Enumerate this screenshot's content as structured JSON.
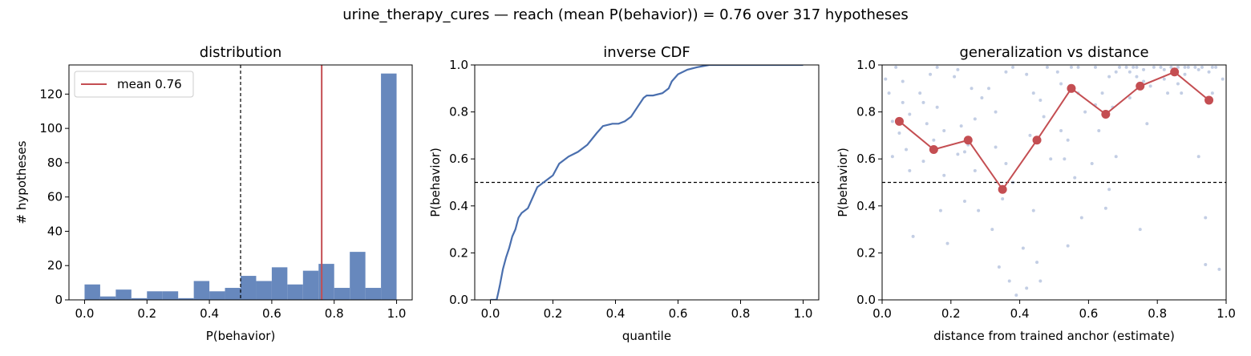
{
  "suptitle": "urine_therapy_cures  —  reach (mean P(behavior)) = 0.76  over 317 hypotheses",
  "colors": {
    "bar": "#6788bd",
    "line": "#4a6fae",
    "mean": "#c44e52",
    "scatter": "#a9b9d8",
    "marker": "#c44e52"
  },
  "chart_data": [
    {
      "type": "bar",
      "title": "distribution",
      "xlabel": "P(behavior)",
      "ylabel": "# hypotheses",
      "xlim": [
        -0.05,
        1.05
      ],
      "ylim": [
        0,
        137
      ],
      "xticks": [
        "0.0",
        "0.2",
        "0.4",
        "0.6",
        "0.8",
        "1.0"
      ],
      "yticks": [
        "0",
        "20",
        "40",
        "60",
        "80",
        "100",
        "120"
      ],
      "bin_edges": [
        0.0,
        0.05,
        0.1,
        0.15,
        0.2,
        0.25,
        0.3,
        0.35,
        0.4,
        0.45,
        0.5,
        0.55,
        0.6,
        0.65,
        0.7,
        0.75,
        0.8,
        0.85,
        0.9,
        0.95,
        1.0
      ],
      "values": [
        9,
        2,
        6,
        1,
        5,
        5,
        1,
        11,
        5,
        7,
        14,
        11,
        19,
        9,
        17,
        21,
        7,
        28,
        7,
        132
      ],
      "mean_value": 0.76,
      "threshold": 0.5,
      "legend": {
        "label": "mean 0.76",
        "position": "upper left"
      }
    },
    {
      "type": "line",
      "title": "inverse CDF",
      "xlabel": "quantile",
      "ylabel": "P(behavior)",
      "xlim": [
        -0.05,
        1.05
      ],
      "ylim": [
        0,
        1
      ],
      "xticks": [
        "0.0",
        "0.2",
        "0.4",
        "0.6",
        "0.8",
        "1.0"
      ],
      "yticks": [
        "0.0",
        "0.2",
        "0.4",
        "0.6",
        "0.8",
        "1.0"
      ],
      "threshold": 0.5,
      "x": [
        0.0,
        0.02,
        0.025,
        0.03,
        0.04,
        0.05,
        0.06,
        0.07,
        0.08,
        0.09,
        0.1,
        0.12,
        0.14,
        0.15,
        0.17,
        0.19,
        0.2,
        0.22,
        0.25,
        0.28,
        0.31,
        0.34,
        0.36,
        0.39,
        0.41,
        0.43,
        0.45,
        0.47,
        0.49,
        0.5,
        0.52,
        0.55,
        0.57,
        0.58,
        0.6,
        0.63,
        0.66,
        0.7,
        0.8,
        1.0
      ],
      "y": [
        0.0,
        0.0,
        0.03,
        0.06,
        0.13,
        0.18,
        0.22,
        0.27,
        0.3,
        0.35,
        0.37,
        0.39,
        0.45,
        0.48,
        0.5,
        0.52,
        0.53,
        0.58,
        0.61,
        0.63,
        0.66,
        0.71,
        0.74,
        0.75,
        0.75,
        0.76,
        0.78,
        0.82,
        0.86,
        0.87,
        0.87,
        0.88,
        0.9,
        0.93,
        0.96,
        0.98,
        0.99,
        1.0,
        1.0,
        1.0
      ]
    },
    {
      "type": "scatter",
      "title": "generalization vs distance",
      "xlabel": "distance from trained anchor (estimate)",
      "ylabel": "P(behavior)",
      "xlim": [
        0,
        1
      ],
      "ylim": [
        0,
        1
      ],
      "xticks": [
        "0.0",
        "0.2",
        "0.4",
        "0.6",
        "0.8",
        "1.0"
      ],
      "yticks": [
        "0.0",
        "0.2",
        "0.4",
        "0.6",
        "0.8",
        "1.0"
      ],
      "threshold": 0.5,
      "binned_x": [
        0.05,
        0.15,
        0.25,
        0.35,
        0.45,
        0.55,
        0.65,
        0.75,
        0.85,
        0.95
      ],
      "binned_y": [
        0.76,
        0.64,
        0.68,
        0.47,
        0.68,
        0.9,
        0.79,
        0.91,
        0.97,
        0.85
      ],
      "points": [
        [
          0.01,
          0.94
        ],
        [
          0.02,
          0.88
        ],
        [
          0.03,
          0.76
        ],
        [
          0.04,
          0.99
        ],
        [
          0.05,
          0.71
        ],
        [
          0.06,
          0.84
        ],
        [
          0.07,
          0.64
        ],
        [
          0.08,
          0.55
        ],
        [
          0.09,
          0.27
        ],
        [
          0.03,
          0.61
        ],
        [
          0.06,
          0.93
        ],
        [
          0.08,
          0.79
        ],
        [
          0.11,
          0.88
        ],
        [
          0.12,
          0.59
        ],
        [
          0.13,
          0.75
        ],
        [
          0.14,
          0.96
        ],
        [
          0.15,
          0.68
        ],
        [
          0.16,
          0.82
        ],
        [
          0.17,
          0.38
        ],
        [
          0.18,
          0.53
        ],
        [
          0.19,
          0.24
        ],
        [
          0.12,
          0.84
        ],
        [
          0.16,
          0.99
        ],
        [
          0.18,
          0.72
        ],
        [
          0.21,
          0.95
        ],
        [
          0.22,
          0.62
        ],
        [
          0.23,
          0.74
        ],
        [
          0.24,
          0.42
        ],
        [
          0.25,
          0.66
        ],
        [
          0.26,
          0.9
        ],
        [
          0.27,
          0.55
        ],
        [
          0.28,
          0.38
        ],
        [
          0.29,
          0.86
        ],
        [
          0.22,
          0.98
        ],
        [
          0.27,
          0.77
        ],
        [
          0.24,
          0.63
        ],
        [
          0.31,
          0.9
        ],
        [
          0.32,
          0.3
        ],
        [
          0.33,
          0.65
        ],
        [
          0.34,
          0.14
        ],
        [
          0.35,
          0.43
        ],
        [
          0.36,
          0.58
        ],
        [
          0.37,
          0.08
        ],
        [
          0.38,
          0.99
        ],
        [
          0.39,
          0.02
        ],
        [
          0.33,
          0.8
        ],
        [
          0.36,
          0.97
        ],
        [
          0.38,
          0.5
        ],
        [
          0.41,
          0.22
        ],
        [
          0.42,
          0.05
        ],
        [
          0.43,
          0.7
        ],
        [
          0.44,
          0.88
        ],
        [
          0.45,
          0.16
        ],
        [
          0.46,
          0.08
        ],
        [
          0.47,
          0.78
        ],
        [
          0.48,
          0.99
        ],
        [
          0.49,
          0.6
        ],
        [
          0.42,
          0.96
        ],
        [
          0.46,
          0.85
        ],
        [
          0.44,
          0.38
        ],
        [
          0.51,
          0.97
        ],
        [
          0.52,
          0.72
        ],
        [
          0.53,
          0.6
        ],
        [
          0.54,
          0.23
        ],
        [
          0.55,
          0.99
        ],
        [
          0.56,
          0.52
        ],
        [
          0.57,
          0.88
        ],
        [
          0.58,
          0.35
        ],
        [
          0.59,
          0.8
        ],
        [
          0.52,
          0.92
        ],
        [
          0.57,
          0.99
        ],
        [
          0.54,
          0.68
        ],
        [
          0.61,
          0.58
        ],
        [
          0.62,
          0.99
        ],
        [
          0.63,
          0.72
        ],
        [
          0.64,
          0.88
        ],
        [
          0.65,
          0.39
        ],
        [
          0.66,
          0.95
        ],
        [
          0.67,
          0.82
        ],
        [
          0.68,
          0.61
        ],
        [
          0.69,
          0.99
        ],
        [
          0.62,
          0.83
        ],
        [
          0.66,
          0.47
        ],
        [
          0.68,
          0.97
        ],
        [
          0.71,
          0.99
        ],
        [
          0.72,
          0.86
        ],
        [
          0.73,
          0.99
        ],
        [
          0.74,
          0.95
        ],
        [
          0.75,
          0.3
        ],
        [
          0.76,
          0.98
        ],
        [
          0.77,
          0.75
        ],
        [
          0.78,
          0.91
        ],
        [
          0.79,
          0.99
        ],
        [
          0.72,
          0.97
        ],
        [
          0.76,
          0.93
        ],
        [
          0.74,
          0.99
        ],
        [
          0.81,
          0.99
        ],
        [
          0.82,
          0.94
        ],
        [
          0.83,
          0.88
        ],
        [
          0.84,
          0.99
        ],
        [
          0.85,
          0.97
        ],
        [
          0.86,
          0.99
        ],
        [
          0.87,
          0.88
        ],
        [
          0.88,
          0.96
        ],
        [
          0.89,
          0.99
        ],
        [
          0.82,
          0.98
        ],
        [
          0.86,
          0.92
        ],
        [
          0.88,
          0.99
        ],
        [
          0.91,
          0.99
        ],
        [
          0.92,
          0.61
        ],
        [
          0.93,
          0.99
        ],
        [
          0.94,
          0.35
        ],
        [
          0.95,
          0.97
        ],
        [
          0.96,
          0.88
        ],
        [
          0.97,
          0.99
        ],
        [
          0.98,
          0.13
        ],
        [
          0.99,
          0.94
        ],
        [
          0.92,
          0.98
        ],
        [
          0.96,
          0.99
        ],
        [
          0.94,
          0.15
        ]
      ]
    }
  ]
}
